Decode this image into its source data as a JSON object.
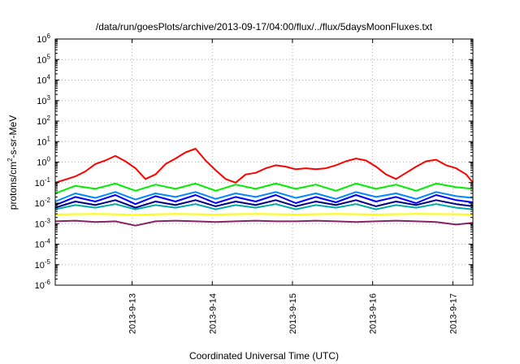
{
  "chart_data": {
    "type": "line",
    "title": "/data/run/goesPlots/archive/2013-09-17/04:00/flux/../flux/5daysMoonFluxes.txt",
    "xlabel": "Coordinated Universal Time (UTC)",
    "ylabel": {
      "base": "protons/cm",
      "sup": "2",
      "rest": "-s-sr-MeV"
    },
    "yscale": "log",
    "ylim": [
      1e-06,
      1000000.0
    ],
    "xlim": [
      "2013-09-12T01:00",
      "2013-09-17T06:00"
    ],
    "grid": true,
    "legend": "none",
    "y_ticks": [
      {
        "value": 1000000.0,
        "base": "10",
        "exp": "6"
      },
      {
        "value": 100000.0,
        "base": "10",
        "exp": "5"
      },
      {
        "value": 10000.0,
        "base": "10",
        "exp": "4"
      },
      {
        "value": 1000.0,
        "base": "10",
        "exp": "3"
      },
      {
        "value": 100.0,
        "base": "10",
        "exp": "2"
      },
      {
        "value": 10.0,
        "base": "10",
        "exp": "1"
      },
      {
        "value": 1.0,
        "base": "10",
        "exp": "0"
      },
      {
        "value": 0.1,
        "base": "10",
        "exp": "-1"
      },
      {
        "value": 0.01,
        "base": "10",
        "exp": "-2"
      },
      {
        "value": 0.001,
        "base": "10",
        "exp": "-3"
      },
      {
        "value": 0.0001,
        "base": "10",
        "exp": "-4"
      },
      {
        "value": 1e-05,
        "base": "10",
        "exp": "-5"
      },
      {
        "value": 1e-06,
        "base": "10",
        "exp": "-6"
      }
    ],
    "x_ticks": [
      "2013-9-13",
      "2013-9-14",
      "2013-9-15",
      "2013-9-16",
      "2013-9-17"
    ],
    "x_tick_dates": [
      "2013-09-13T00:00",
      "2013-09-14T00:00",
      "2013-09-15T00:00",
      "2013-09-16T00:00",
      "2013-09-17T00:00"
    ],
    "series": [
      {
        "color": "#ff0000",
        "x": [
          "2013-09-12T01:00",
          "2013-09-12T04:00",
          "2013-09-12T07:00",
          "2013-09-12T10:00",
          "2013-09-12T13:00",
          "2013-09-12T16:00",
          "2013-09-12T19:00",
          "2013-09-12T22:00",
          "2013-09-13T01:00",
          "2013-09-13T04:00",
          "2013-09-13T07:00",
          "2013-09-13T10:00",
          "2013-09-13T13:00",
          "2013-09-13T16:00",
          "2013-09-13T19:00",
          "2013-09-13T22:00",
          "2013-09-14T01:00",
          "2013-09-14T04:00",
          "2013-09-14T07:00",
          "2013-09-14T10:00",
          "2013-09-14T13:00",
          "2013-09-14T16:00",
          "2013-09-14T19:00",
          "2013-09-14T22:00",
          "2013-09-15T01:00",
          "2013-09-15T04:00",
          "2013-09-15T07:00",
          "2013-09-15T10:00",
          "2013-09-15T13:00",
          "2013-09-15T16:00",
          "2013-09-15T19:00",
          "2013-09-15T22:00",
          "2013-09-16T01:00",
          "2013-09-16T04:00",
          "2013-09-16T07:00",
          "2013-09-16T10:00",
          "2013-09-16T13:00",
          "2013-09-16T16:00",
          "2013-09-16T19:00",
          "2013-09-16T22:00",
          "2013-09-17T01:00",
          "2013-09-17T04:00",
          "2013-09-17T06:00"
        ],
        "y": [
          0.1,
          0.14,
          0.2,
          0.35,
          0.8,
          1.2,
          2.0,
          1.1,
          0.5,
          0.15,
          0.25,
          0.8,
          1.5,
          3.0,
          4.5,
          1.2,
          0.4,
          0.15,
          0.1,
          0.25,
          0.3,
          0.5,
          0.7,
          0.6,
          0.45,
          0.5,
          0.45,
          0.5,
          0.7,
          1.1,
          1.5,
          1.2,
          0.6,
          0.25,
          0.15,
          0.3,
          0.6,
          1.1,
          1.3,
          0.7,
          0.5,
          0.25,
          0.1
        ]
      },
      {
        "color": "#00ee00",
        "x": [
          "2013-09-12T01:00",
          "2013-09-12T07:00",
          "2013-09-12T13:00",
          "2013-09-12T19:00",
          "2013-09-13T01:00",
          "2013-09-13T07:00",
          "2013-09-13T13:00",
          "2013-09-13T19:00",
          "2013-09-14T01:00",
          "2013-09-14T07:00",
          "2013-09-14T13:00",
          "2013-09-14T19:00",
          "2013-09-15T01:00",
          "2013-09-15T07:00",
          "2013-09-15T13:00",
          "2013-09-15T19:00",
          "2013-09-16T01:00",
          "2013-09-16T07:00",
          "2013-09-16T13:00",
          "2013-09-16T19:00",
          "2013-09-17T01:00",
          "2013-09-17T06:00"
        ],
        "y": [
          0.03,
          0.07,
          0.05,
          0.09,
          0.04,
          0.08,
          0.05,
          0.09,
          0.04,
          0.08,
          0.05,
          0.09,
          0.05,
          0.08,
          0.04,
          0.09,
          0.05,
          0.08,
          0.04,
          0.09,
          0.06,
          0.05
        ]
      },
      {
        "color": "#0088ff",
        "x": [
          "2013-09-12T01:00",
          "2013-09-12T07:00",
          "2013-09-12T13:00",
          "2013-09-12T19:00",
          "2013-09-13T01:00",
          "2013-09-13T07:00",
          "2013-09-13T13:00",
          "2013-09-13T19:00",
          "2013-09-14T01:00",
          "2013-09-14T07:00",
          "2013-09-14T13:00",
          "2013-09-14T19:00",
          "2013-09-15T01:00",
          "2013-09-15T07:00",
          "2013-09-15T13:00",
          "2013-09-15T19:00",
          "2013-09-16T01:00",
          "2013-09-16T07:00",
          "2013-09-16T13:00",
          "2013-09-16T19:00",
          "2013-09-17T01:00",
          "2013-09-17T06:00"
        ],
        "y": [
          0.012,
          0.03,
          0.018,
          0.035,
          0.015,
          0.03,
          0.02,
          0.035,
          0.016,
          0.03,
          0.02,
          0.035,
          0.018,
          0.03,
          0.016,
          0.035,
          0.02,
          0.03,
          0.016,
          0.035,
          0.022,
          0.018
        ]
      },
      {
        "color": "#0000ff",
        "x": [
          "2013-09-12T01:00",
          "2013-09-12T07:00",
          "2013-09-12T13:00",
          "2013-09-12T19:00",
          "2013-09-13T01:00",
          "2013-09-13T07:00",
          "2013-09-13T13:00",
          "2013-09-13T19:00",
          "2013-09-14T01:00",
          "2013-09-14T07:00",
          "2013-09-14T13:00",
          "2013-09-14T19:00",
          "2013-09-15T01:00",
          "2013-09-15T07:00",
          "2013-09-15T13:00",
          "2013-09-15T19:00",
          "2013-09-16T01:00",
          "2013-09-16T07:00",
          "2013-09-16T13:00",
          "2013-09-16T19:00",
          "2013-09-17T01:00",
          "2013-09-17T06:00"
        ],
        "y": [
          0.008,
          0.02,
          0.012,
          0.025,
          0.009,
          0.022,
          0.012,
          0.025,
          0.01,
          0.02,
          0.012,
          0.025,
          0.01,
          0.02,
          0.011,
          0.025,
          0.012,
          0.02,
          0.01,
          0.025,
          0.014,
          0.011
        ]
      },
      {
        "color": "#00aaaa",
        "x": [
          "2013-09-12T01:00",
          "2013-09-12T07:00",
          "2013-09-12T13:00",
          "2013-09-12T19:00",
          "2013-09-13T01:00",
          "2013-09-13T07:00",
          "2013-09-13T13:00",
          "2013-09-13T19:00",
          "2013-09-14T01:00",
          "2013-09-14T07:00",
          "2013-09-14T13:00",
          "2013-09-14T19:00",
          "2013-09-15T01:00",
          "2013-09-15T07:00",
          "2013-09-15T13:00",
          "2013-09-15T19:00",
          "2013-09-16T01:00",
          "2013-09-16T07:00",
          "2013-09-16T13:00",
          "2013-09-16T19:00",
          "2013-09-17T01:00",
          "2013-09-17T06:00"
        ],
        "y": [
          0.005,
          0.008,
          0.006,
          0.009,
          0.005,
          0.008,
          0.006,
          0.009,
          0.005,
          0.008,
          0.006,
          0.009,
          0.005,
          0.008,
          0.006,
          0.009,
          0.005,
          0.008,
          0.006,
          0.009,
          0.006,
          0.005
        ]
      },
      {
        "color": "#000088",
        "x": [
          "2013-09-12T01:00",
          "2013-09-12T07:00",
          "2013-09-12T13:00",
          "2013-09-12T19:00",
          "2013-09-13T01:00",
          "2013-09-13T07:00",
          "2013-09-13T13:00",
          "2013-09-13T19:00",
          "2013-09-14T01:00",
          "2013-09-14T07:00",
          "2013-09-14T13:00",
          "2013-09-14T19:00",
          "2013-09-15T01:00",
          "2013-09-15T07:00",
          "2013-09-15T13:00",
          "2013-09-15T19:00",
          "2013-09-16T01:00",
          "2013-09-16T07:00",
          "2013-09-16T13:00",
          "2013-09-16T19:00",
          "2013-09-17T01:00",
          "2013-09-17T06:00"
        ],
        "y": [
          0.006,
          0.012,
          0.008,
          0.014,
          0.006,
          0.012,
          0.008,
          0.014,
          0.007,
          0.012,
          0.008,
          0.014,
          0.007,
          0.012,
          0.008,
          0.014,
          0.007,
          0.012,
          0.008,
          0.014,
          0.009,
          0.007
        ]
      },
      {
        "color": "#ffff00",
        "x": [
          "2013-09-12T01:00",
          "2013-09-12T13:00",
          "2013-09-13T01:00",
          "2013-09-13T13:00",
          "2013-09-14T01:00",
          "2013-09-14T13:00",
          "2013-09-15T01:00",
          "2013-09-15T13:00",
          "2013-09-16T01:00",
          "2013-09-16T13:00",
          "2013-09-17T01:00",
          "2013-09-17T06:00"
        ],
        "y": [
          0.0028,
          0.003,
          0.0027,
          0.003,
          0.0028,
          0.003,
          0.0028,
          0.003,
          0.0028,
          0.003,
          0.0029,
          0.0028
        ]
      },
      {
        "color": "#882266",
        "x": [
          "2013-09-12T01:00",
          "2013-09-12T07:00",
          "2013-09-12T13:00",
          "2013-09-12T19:00",
          "2013-09-13T01:00",
          "2013-09-13T07:00",
          "2013-09-13T13:00",
          "2013-09-13T19:00",
          "2013-09-14T01:00",
          "2013-09-14T07:00",
          "2013-09-14T13:00",
          "2013-09-14T19:00",
          "2013-09-15T01:00",
          "2013-09-15T07:00",
          "2013-09-15T13:00",
          "2013-09-15T19:00",
          "2013-09-16T01:00",
          "2013-09-16T07:00",
          "2013-09-16T13:00",
          "2013-09-16T19:00",
          "2013-09-17T01:00",
          "2013-09-17T06:00"
        ],
        "y": [
          0.0013,
          0.0014,
          0.0012,
          0.0013,
          0.0008,
          0.0013,
          0.0014,
          0.0013,
          0.0012,
          0.0013,
          0.0014,
          0.0013,
          0.0013,
          0.0014,
          0.0013,
          0.0012,
          0.0013,
          0.0014,
          0.0013,
          0.0012,
          0.0009,
          0.0011
        ]
      }
    ]
  }
}
